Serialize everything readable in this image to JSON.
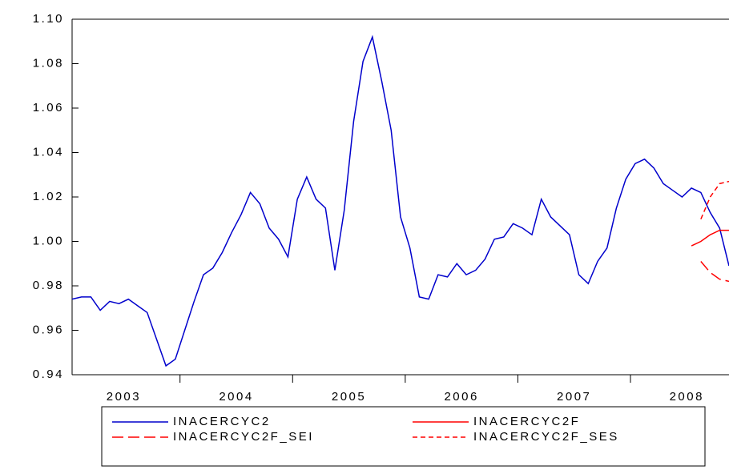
{
  "chart_data": {
    "type": "line",
    "categories": [
      null,
      null,
      null,
      null,
      null,
      null,
      "2003",
      null,
      null,
      null,
      null,
      null,
      null,
      null,
      null,
      null,
      null,
      null,
      "2004",
      null,
      null,
      null,
      null,
      null,
      null,
      null,
      null,
      null,
      null,
      null,
      "2005",
      null,
      null,
      null,
      null,
      null,
      null,
      null,
      null,
      null,
      null,
      null,
      "2006",
      null,
      null,
      null,
      null,
      null,
      null,
      null,
      null,
      null,
      null,
      null,
      "2007",
      null,
      null,
      null,
      null,
      null,
      null,
      null,
      null,
      null,
      null,
      null,
      "2008",
      null,
      null,
      null,
      null
    ],
    "series": [
      {
        "name": "INACERCYC2",
        "color": "#0000cc",
        "style": "solid",
        "values": [
          0.974,
          0.975,
          0.975,
          0.969,
          0.973,
          0.972,
          0.974,
          0.971,
          0.968,
          0.956,
          0.944,
          0.947,
          0.96,
          0.973,
          0.985,
          0.988,
          0.995,
          1.004,
          1.012,
          1.022,
          1.017,
          1.006,
          1.001,
          0.993,
          1.019,
          1.029,
          1.019,
          1.015,
          0.987,
          1.014,
          1.054,
          1.081,
          1.092,
          1.072,
          1.05,
          1.011,
          0.997,
          0.975,
          0.974,
          0.985,
          0.984,
          0.99,
          0.985,
          0.987,
          0.992,
          1.001,
          1.002,
          1.008,
          1.006,
          1.003,
          1.019,
          1.011,
          1.007,
          1.003,
          0.985,
          0.981,
          0.991,
          0.997,
          1.015,
          1.028,
          1.035,
          1.037,
          1.033,
          1.026,
          1.023,
          1.02,
          1.024,
          1.022,
          1.013,
          1.006,
          0.989
        ]
      },
      {
        "name": "INACERCYC2F",
        "color": "#ff0000",
        "style": "solid",
        "values": [
          null,
          null,
          null,
          null,
          null,
          null,
          null,
          null,
          null,
          null,
          null,
          null,
          null,
          null,
          null,
          null,
          null,
          null,
          null,
          null,
          null,
          null,
          null,
          null,
          null,
          null,
          null,
          null,
          null,
          null,
          null,
          null,
          null,
          null,
          null,
          null,
          null,
          null,
          null,
          null,
          null,
          null,
          null,
          null,
          null,
          null,
          null,
          null,
          null,
          null,
          null,
          null,
          null,
          null,
          null,
          null,
          null,
          null,
          null,
          null,
          null,
          null,
          null,
          null,
          null,
          null,
          0.998,
          1.0,
          1.003,
          1.005,
          1.005
        ]
      },
      {
        "name": "INACERCYC2F_SEI",
        "color": "#ff0000",
        "style": "long-dash",
        "values": [
          null,
          null,
          null,
          null,
          null,
          null,
          null,
          null,
          null,
          null,
          null,
          null,
          null,
          null,
          null,
          null,
          null,
          null,
          null,
          null,
          null,
          null,
          null,
          null,
          null,
          null,
          null,
          null,
          null,
          null,
          null,
          null,
          null,
          null,
          null,
          null,
          null,
          null,
          null,
          null,
          null,
          null,
          null,
          null,
          null,
          null,
          null,
          null,
          null,
          null,
          null,
          null,
          null,
          null,
          null,
          null,
          null,
          null,
          null,
          null,
          null,
          null,
          null,
          null,
          null,
          null,
          null,
          0.991,
          0.986,
          0.983,
          0.982
        ]
      },
      {
        "name": "INACERCYC2F_SES",
        "color": "#ff0000",
        "style": "short-dash",
        "values": [
          null,
          null,
          null,
          null,
          null,
          null,
          null,
          null,
          null,
          null,
          null,
          null,
          null,
          null,
          null,
          null,
          null,
          null,
          null,
          null,
          null,
          null,
          null,
          null,
          null,
          null,
          null,
          null,
          null,
          null,
          null,
          null,
          null,
          null,
          null,
          null,
          null,
          null,
          null,
          null,
          null,
          null,
          null,
          null,
          null,
          null,
          null,
          null,
          null,
          null,
          null,
          null,
          null,
          null,
          null,
          null,
          null,
          null,
          null,
          null,
          null,
          null,
          null,
          null,
          null,
          null,
          null,
          1.01,
          1.02,
          1.026,
          1.027
        ]
      }
    ],
    "ylim": [
      0.94,
      1.1
    ],
    "yticks": [
      0.94,
      0.96,
      0.98,
      {
        "value": 1.0,
        "label": "1.00"
      },
      1.02,
      1.04,
      1.06,
      1.08,
      {
        "value": 1.1,
        "label": "1.10"
      }
    ],
    "grid": false,
    "legend": "bottom"
  }
}
